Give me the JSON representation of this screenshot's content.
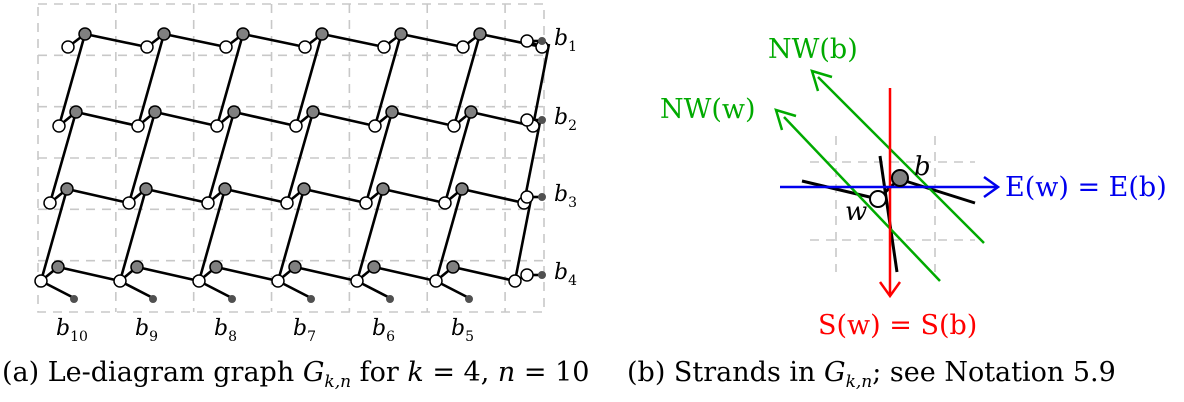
{
  "figure_a": {
    "caption_prefix": "(a) Le-diagram graph ",
    "caption_G": "G",
    "caption_G_sub": "k,n",
    "caption_rest1": " for ",
    "caption_k": "k",
    "caption_eq4": " = 4, ",
    "caption_n": "n",
    "caption_eq10": " = 10",
    "right_boundary_labels": [
      {
        "base": "b",
        "sub": "1"
      },
      {
        "base": "b",
        "sub": "2"
      },
      {
        "base": "b",
        "sub": "3"
      },
      {
        "base": "b",
        "sub": "4"
      }
    ],
    "bottom_boundary_labels": [
      {
        "base": "b",
        "sub": "10"
      },
      {
        "base": "b",
        "sub": "9"
      },
      {
        "base": "b",
        "sub": "8"
      },
      {
        "base": "b",
        "sub": "7"
      },
      {
        "base": "b",
        "sub": "6"
      },
      {
        "base": "b",
        "sub": "5"
      }
    ],
    "colors": {
      "grid": "#c8c8c8",
      "edge": "#000000",
      "black_vertex": "#808080",
      "white_vertex": "#ffffff",
      "boundary": "#505050"
    }
  },
  "figure_b": {
    "caption_prefix": "(b) Strands in ",
    "caption_G": "G",
    "caption_G_sub": "k,n",
    "caption_rest": "; see Notation 5.9",
    "label_NWb": "NW(b)",
    "label_NWw": "NW(w)",
    "label_b": "b",
    "label_w": "w",
    "label_E": "E(w) = E(b)",
    "label_S": "S(w) = S(b)",
    "colors": {
      "green": "#00aa00",
      "red": "#ff0000",
      "blue": "#0000ee"
    }
  }
}
